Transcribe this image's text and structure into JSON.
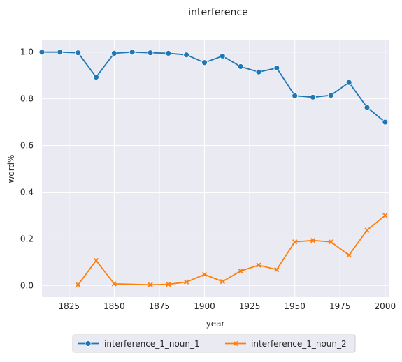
{
  "chart_data": {
    "type": "line",
    "title": "interference",
    "xlabel": "year",
    "ylabel": "word%",
    "xlim": [
      1810,
      2002
    ],
    "ylim": [
      -0.05,
      1.05
    ],
    "xticks": [
      "1825",
      "1850",
      "1875",
      "1900",
      "1925",
      "1950",
      "1975",
      "2000"
    ],
    "yticks": [
      "0.0",
      "0.2",
      "0.4",
      "0.6",
      "0.8",
      "1.0"
    ],
    "grid": true,
    "legend_position": "bottom-center",
    "series": [
      {
        "name": "interference_1_noun_1",
        "color": "#1f77b4",
        "marker": "circle",
        "points": [
          [
            1810,
            1.0
          ],
          [
            1820,
            1.0
          ],
          [
            1830,
            0.997
          ],
          [
            1840,
            0.893
          ],
          [
            1850,
            0.995
          ],
          [
            1860,
            1.0
          ],
          [
            1870,
            0.997
          ],
          [
            1880,
            0.995
          ],
          [
            1890,
            0.988
          ],
          [
            1900,
            0.955
          ],
          [
            1910,
            0.983
          ],
          [
            1920,
            0.938
          ],
          [
            1930,
            0.915
          ],
          [
            1940,
            0.932
          ],
          [
            1950,
            0.813
          ],
          [
            1960,
            0.807
          ],
          [
            1970,
            0.815
          ],
          [
            1980,
            0.87
          ],
          [
            1990,
            0.763
          ],
          [
            2000,
            0.7
          ]
        ]
      },
      {
        "name": "interference_1_noun_2",
        "color": "#ff7f0e",
        "marker": "x",
        "points": [
          [
            1830,
            0.003
          ],
          [
            1840,
            0.107
          ],
          [
            1850,
            0.007
          ],
          [
            1870,
            0.003
          ],
          [
            1880,
            0.005
          ],
          [
            1890,
            0.015
          ],
          [
            1900,
            0.047
          ],
          [
            1910,
            0.017
          ],
          [
            1920,
            0.062
          ],
          [
            1930,
            0.087
          ],
          [
            1940,
            0.068
          ],
          [
            1950,
            0.187
          ],
          [
            1960,
            0.193
          ],
          [
            1970,
            0.187
          ],
          [
            1980,
            0.13
          ],
          [
            1990,
            0.237
          ],
          [
            2000,
            0.3
          ]
        ]
      }
    ]
  }
}
